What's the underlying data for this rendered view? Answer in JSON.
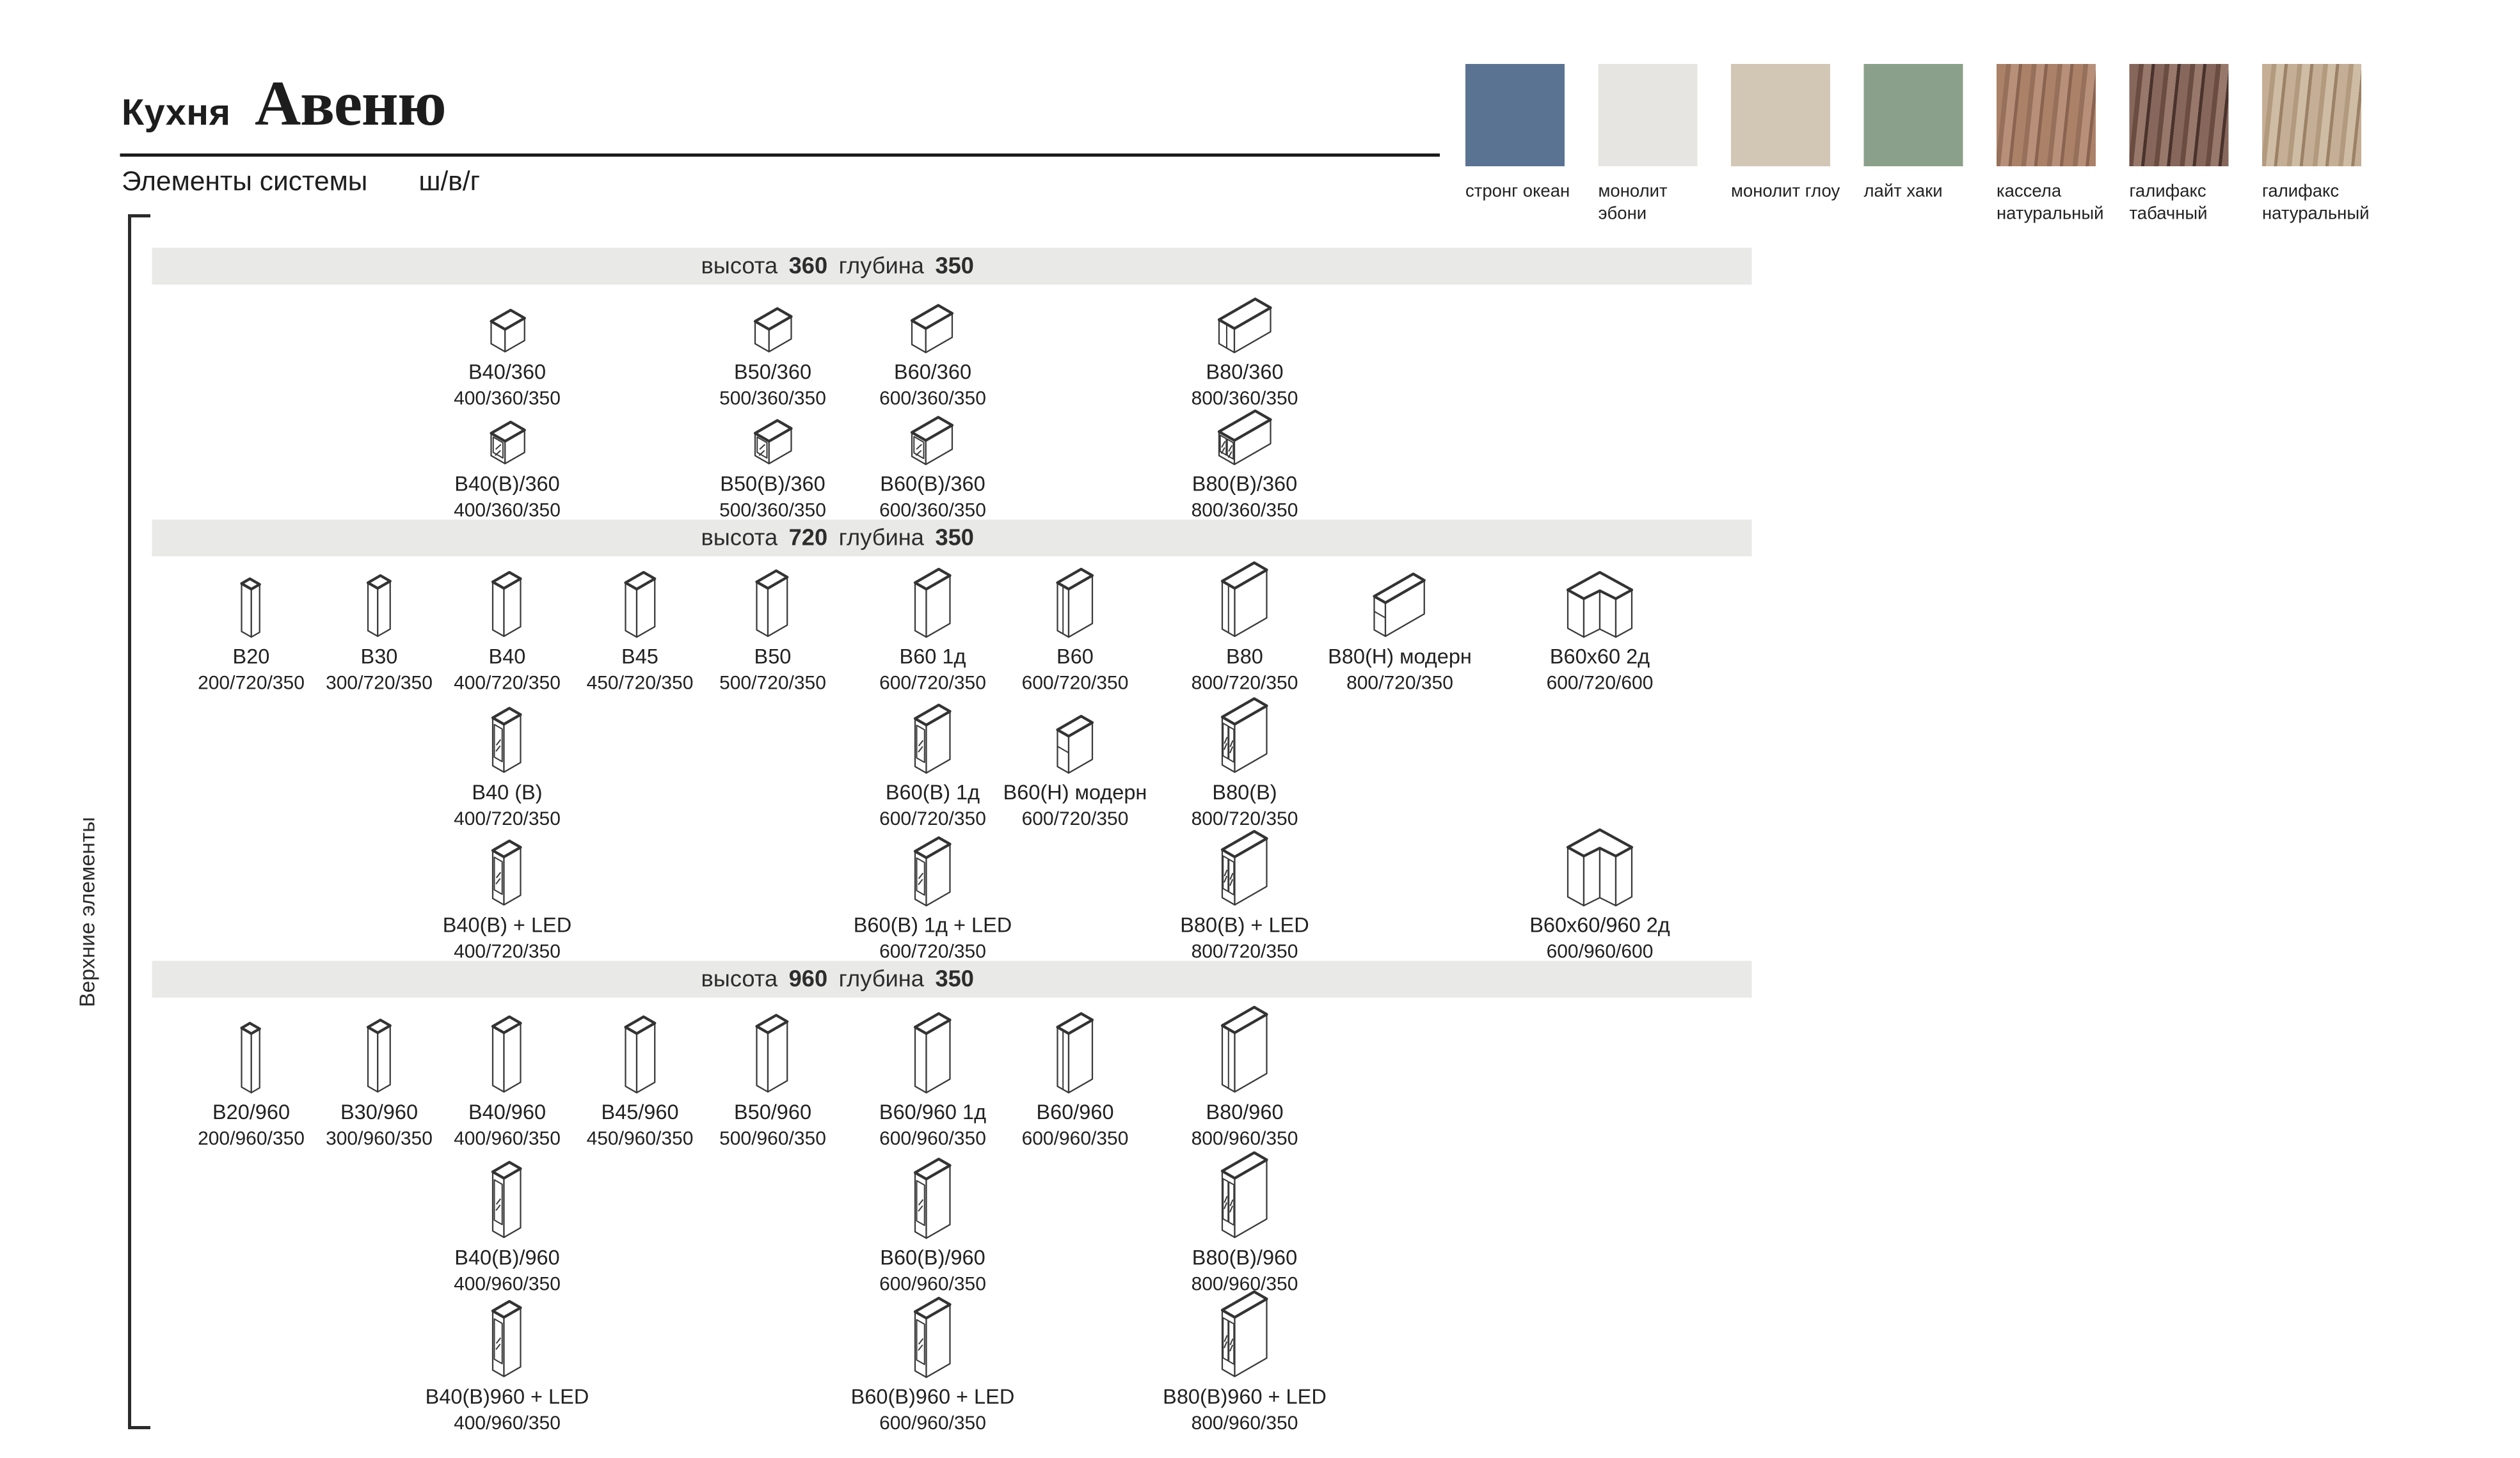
{
  "page": {
    "kitchen_label": "Кухня",
    "title": "Авеню",
    "subtitle": "Элементы системы",
    "dims_legend": "ш/в/г",
    "side_label": "Верхние элементы",
    "band_color": "#e9e9e8"
  },
  "finishes": [
    {
      "name": "стронг океан",
      "colors": [
        "#5b7392"
      ]
    },
    {
      "name": "монолит эбони",
      "colors": [
        "#e6e5e2"
      ]
    },
    {
      "name": "монолит глоу",
      "colors": [
        "#d2c7b5"
      ]
    },
    {
      "name": "лайт хаки",
      "colors": [
        "#8ba08a"
      ]
    },
    {
      "name": "кассела натуральный",
      "colors": [
        "#ab8168",
        "#96705a",
        "#b8907a",
        "#8a6450"
      ],
      "wood": true
    },
    {
      "name": "галифакс табачный",
      "colors": [
        "#87675c",
        "#6b4c41",
        "#97786b",
        "#4a332c"
      ],
      "wood": true
    },
    {
      "name": "галифакс натуральный",
      "colors": [
        "#c4ae95",
        "#b29a7e",
        "#cfbca4",
        "#9b8266"
      ],
      "wood": true
    }
  ],
  "sections": [
    {
      "band": {
        "pre": "высота",
        "height": "360",
        "mid": "глубина",
        "depth": "350"
      },
      "rows": [
        [
          {
            "label": "В40/360",
            "dims": "400/360/350",
            "col": 3,
            "icon": "b360-40"
          },
          {
            "label": "В50/360",
            "dims": "500/360/350",
            "col": 5,
            "icon": "b360-50"
          },
          {
            "label": "В60/360",
            "dims": "600/360/350",
            "col": 6,
            "icon": "b360-60"
          },
          {
            "label": "В80/360",
            "dims": "800/360/350",
            "col": 8,
            "icon": "b360-80"
          }
        ],
        [
          {
            "label": "В40(В)/360",
            "dims": "400/360/350",
            "col": 3,
            "icon": "b360-40g"
          },
          {
            "label": "В50(В)/360",
            "dims": "500/360/350",
            "col": 5,
            "icon": "b360-50g"
          },
          {
            "label": "В60(В)/360",
            "dims": "600/360/350",
            "col": 6,
            "icon": "b360-60g"
          },
          {
            "label": "В80(В)/360",
            "dims": "800/360/350",
            "col": 8,
            "icon": "b360-80g"
          }
        ]
      ]
    },
    {
      "band": {
        "pre": "высота",
        "height": "720",
        "mid": "глубина",
        "depth": "350"
      },
      "rows": [
        [
          {
            "label": "В20",
            "dims": "200/720/350",
            "col": 1,
            "icon": "b720-20"
          },
          {
            "label": "В30",
            "dims": "300/720/350",
            "col": 2,
            "icon": "b720-30"
          },
          {
            "label": "В40",
            "dims": "400/720/350",
            "col": 3,
            "icon": "b720-40"
          },
          {
            "label": "В45",
            "dims": "450/720/350",
            "col": 4,
            "icon": "b720-45"
          },
          {
            "label": "В50",
            "dims": "500/720/350",
            "col": 5,
            "icon": "b720-50"
          },
          {
            "label": "В60 1д",
            "dims": "600/720/350",
            "col": 6,
            "icon": "b720-60-1d"
          },
          {
            "label": "В60",
            "dims": "600/720/350",
            "col": 7,
            "icon": "b720-60"
          },
          {
            "label": "В80",
            "dims": "800/720/350",
            "col": 8,
            "icon": "b720-80"
          },
          {
            "label": "В80(Н) модерн",
            "dims": "800/720/350",
            "col": 9,
            "icon": "b720-80h"
          },
          {
            "label": "В60х60 2д",
            "dims": "600/720/600",
            "col": 10,
            "icon": "b720-corner"
          }
        ],
        [
          {
            "label": "В40 (В)",
            "dims": "400/720/350",
            "col": 3,
            "icon": "b720-40g"
          },
          {
            "label": "В60(В) 1д",
            "dims": "600/720/350",
            "col": 6,
            "icon": "b720-60g"
          },
          {
            "label": "В60(Н) модерн",
            "dims": "600/720/350",
            "col": 7,
            "icon": "b720-60h"
          },
          {
            "label": "В80(В)",
            "dims": "800/720/350",
            "col": 8,
            "icon": "b720-80g"
          }
        ],
        [
          {
            "label": "В40(В) + LED",
            "dims": "400/720/350",
            "col": 3,
            "icon": "b720-40g"
          },
          {
            "label": "В60(В) 1д + LED",
            "dims": "600/720/350",
            "col": 6,
            "icon": "b720-60g"
          },
          {
            "label": "В80(В) + LED",
            "dims": "800/720/350",
            "col": 8,
            "icon": "b720-80g"
          },
          {
            "label": "В60х60/960 2д",
            "dims": "600/960/600",
            "col": 10,
            "icon": "b960-corner"
          }
        ]
      ]
    },
    {
      "band": {
        "pre": "высота",
        "height": "960",
        "mid": "глубина",
        "depth": "350"
      },
      "rows": [
        [
          {
            "label": "В20/960",
            "dims": "200/960/350",
            "col": 1,
            "icon": "b960-20"
          },
          {
            "label": "В30/960",
            "dims": "300/960/350",
            "col": 2,
            "icon": "b960-30"
          },
          {
            "label": "В40/960",
            "dims": "400/960/350",
            "col": 3,
            "icon": "b960-40"
          },
          {
            "label": "В45/960",
            "dims": "450/960/350",
            "col": 4,
            "icon": "b960-45"
          },
          {
            "label": "В50/960",
            "dims": "500/960/350",
            "col": 5,
            "icon": "b960-50"
          },
          {
            "label": "В60/960 1д",
            "dims": "600/960/350",
            "col": 6,
            "icon": "b960-60-1d"
          },
          {
            "label": "В60/960",
            "dims": "600/960/350",
            "col": 7,
            "icon": "b960-60"
          },
          {
            "label": "В80/960",
            "dims": "800/960/350",
            "col": 8,
            "icon": "b960-80"
          }
        ],
        [
          {
            "label": "В40(В)/960",
            "dims": "400/960/350",
            "col": 3,
            "icon": "b960-40g"
          },
          {
            "label": "В60(В)/960",
            "dims": "600/960/350",
            "col": 6,
            "icon": "b960-60g"
          },
          {
            "label": "В80(В)/960",
            "dims": "800/960/350",
            "col": 8,
            "icon": "b960-80g"
          }
        ],
        [
          {
            "label": "В40(В)960 + LED",
            "dims": "400/960/350",
            "col": 3,
            "icon": "b960-40g"
          },
          {
            "label": "В60(В)960 + LED",
            "dims": "600/960/350",
            "col": 6,
            "icon": "b960-60g"
          },
          {
            "label": "В80(В)960 + LED",
            "dims": "800/960/350",
            "col": 8,
            "icon": "b960-80g"
          }
        ]
      ]
    }
  ]
}
